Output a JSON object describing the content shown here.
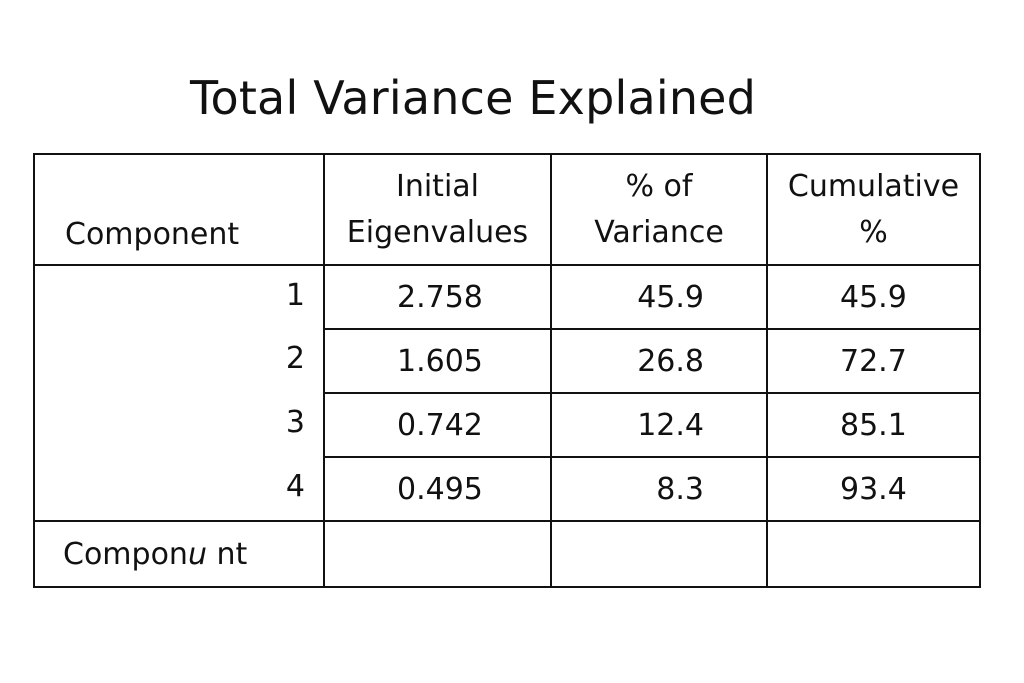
{
  "title": "Total Variance Explained",
  "table": {
    "headers": {
      "component": "Component",
      "eigenvalues_line1": "Initial",
      "eigenvalues_line2": "Eigenvalues",
      "variance_line1": "% of",
      "variance_line2": "Variance",
      "cumulative_line1": "Cumulative",
      "cumulative_line2": "%"
    },
    "rows": [
      {
        "component": "1",
        "eigenvalue": "2.758",
        "pct_variance": "45.9",
        "cumulative": "45.9"
      },
      {
        "component": "2",
        "eigenvalue": "1.605",
        "pct_variance": "26.8",
        "cumulative": "72.7"
      },
      {
        "component": "3",
        "eigenvalue": "0.742",
        "pct_variance": "12.4",
        "cumulative": "85.1"
      },
      {
        "component": "4",
        "eigenvalue": "0.495",
        "pct_variance": "8.3",
        "cumulative": "93.4"
      }
    ],
    "footer": {
      "label_part1": "Compon",
      "label_part2": "u",
      "label_part3": " nt"
    }
  }
}
